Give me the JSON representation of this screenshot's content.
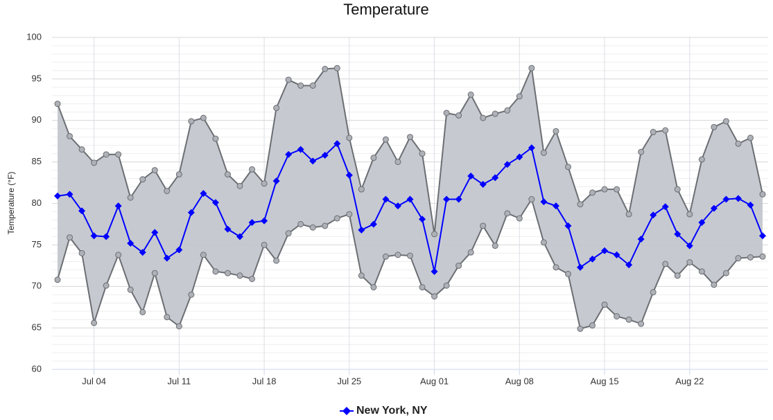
{
  "chart_data": {
    "type": "line",
    "title": "Temperature",
    "y_label": "Temperature (°F)",
    "categories": [
      null,
      null,
      null,
      "Jul 04",
      null,
      null,
      null,
      null,
      null,
      null,
      "Jul 11",
      null,
      null,
      null,
      null,
      null,
      null,
      "Jul 18",
      null,
      null,
      null,
      null,
      null,
      null,
      "Jul 25",
      null,
      null,
      null,
      null,
      null,
      null,
      "Aug 01",
      null,
      null,
      null,
      null,
      null,
      null,
      "Aug 08",
      null,
      null,
      null,
      null,
      null,
      null,
      "Aug 15",
      null,
      null,
      null,
      null,
      null,
      null,
      "Aug 22",
      null,
      null,
      null,
      null,
      null,
      null
    ],
    "series": [
      {
        "name": "New York, NY",
        "color": "#0000ff",
        "values": [
          80.9,
          81.1,
          79.1,
          76.1,
          76.0,
          79.7,
          75.2,
          74.1,
          76.5,
          73.4,
          74.4,
          78.9,
          81.2,
          80.1,
          76.9,
          76.0,
          77.7,
          77.9,
          82.7,
          85.9,
          86.5,
          85.1,
          85.8,
          87.2,
          83.4,
          76.8,
          77.5,
          80.5,
          79.7,
          80.5,
          78.1,
          71.8,
          80.5,
          80.5,
          83.3,
          82.3,
          83.1,
          84.7,
          85.6,
          86.7,
          80.2,
          79.7,
          77.3,
          72.3,
          73.3,
          74.3,
          73.8,
          72.6,
          75.7,
          78.6,
          79.6,
          76.3,
          74.9,
          77.7,
          79.4,
          80.5,
          80.6,
          79.8,
          76.1
        ]
      }
    ],
    "band": {
      "color": "#c3c7ce",
      "line_color": "#6b6e72",
      "high": [
        92.0,
        88.1,
        86.5,
        84.9,
        85.9,
        85.9,
        80.7,
        82.9,
        84.0,
        81.5,
        83.5,
        89.9,
        90.3,
        87.8,
        83.5,
        82.1,
        84.1,
        82.4,
        91.5,
        94.9,
        94.2,
        94.2,
        96.2,
        96.3,
        87.9,
        81.7,
        85.5,
        87.7,
        85.0,
        88.0,
        86.0,
        76.3,
        90.9,
        90.6,
        93.1,
        90.3,
        90.8,
        91.2,
        92.9,
        96.3,
        86.1,
        88.7,
        84.4,
        79.9,
        81.3,
        81.7,
        81.7,
        78.7,
        86.2,
        88.6,
        88.8,
        81.7,
        78.7,
        85.3,
        89.2,
        89.9,
        87.2,
        87.9,
        81.1
      ],
      "low": [
        70.8,
        75.9,
        74.0,
        65.6,
        70.1,
        73.8,
        69.6,
        66.9,
        71.6,
        66.3,
        65.2,
        69.0,
        73.8,
        71.8,
        71.6,
        71.3,
        70.9,
        75.0,
        73.1,
        76.4,
        77.5,
        77.1,
        77.3,
        78.2,
        78.7,
        71.3,
        69.9,
        73.6,
        73.8,
        73.7,
        69.9,
        68.8,
        70.1,
        72.5,
        74.1,
        77.3,
        74.9,
        78.8,
        78.2,
        80.5,
        75.3,
        72.3,
        71.5,
        64.9,
        65.3,
        67.8,
        66.4,
        66.0,
        65.5,
        69.3,
        72.7,
        71.3,
        72.9,
        71.8,
        70.2,
        71.6,
        73.4,
        73.5,
        73.6
      ]
    },
    "ylim": [
      60,
      100
    ],
    "yticks": [
      60,
      65,
      70,
      75,
      80,
      85,
      90,
      95,
      100
    ],
    "grid": true
  }
}
